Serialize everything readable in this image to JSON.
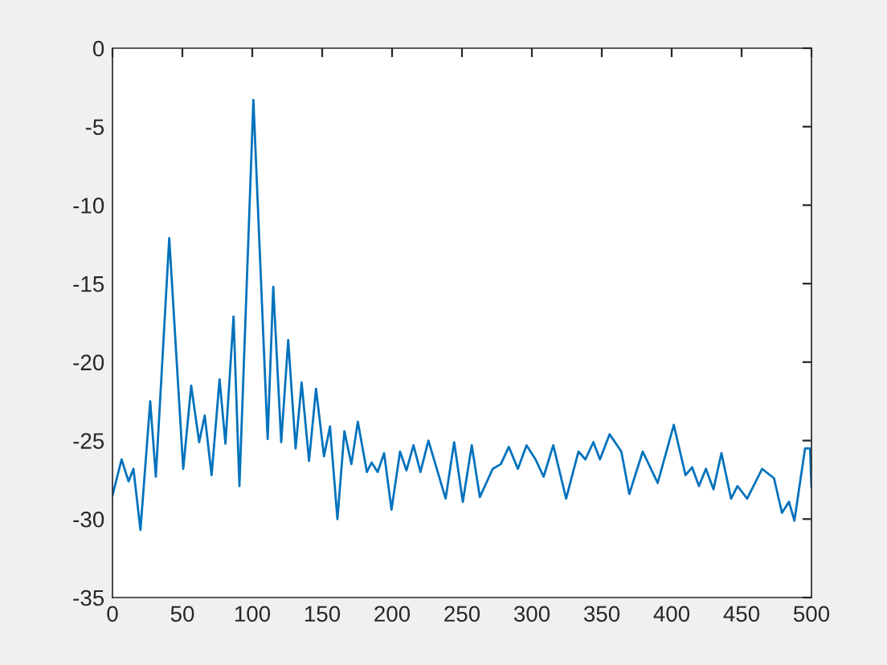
{
  "chart_data": {
    "type": "line",
    "xlim": [
      0,
      500
    ],
    "ylim": [
      -35,
      0
    ],
    "xticks": [
      0,
      50,
      100,
      150,
      200,
      250,
      300,
      350,
      400,
      450,
      500
    ],
    "yticks": [
      -35,
      -30,
      -25,
      -20,
      -15,
      -10,
      -5,
      0
    ],
    "grid": false,
    "marker": "none",
    "line_style": "solid",
    "series": [
      {
        "color": "#0072bd",
        "x": [
          0,
          6.5,
          11.5,
          15,
          20,
          27,
          31,
          40.6,
          50.6,
          56.3,
          62,
          66,
          70.9,
          76.6,
          80.8,
          86.6,
          90.8,
          100.8,
          111,
          115,
          120.7,
          125.7,
          131,
          135.3,
          140.6,
          145.6,
          151.3,
          155.6,
          160.9,
          165.9,
          170.9,
          175.5,
          182,
          185.4,
          189.7,
          194.3,
          199.6,
          205.7,
          210.3,
          215.3,
          220.3,
          226,
          238.3,
          244.4,
          250.6,
          257,
          262.8,
          272,
          277.8,
          283.5,
          290,
          296.2,
          302.6,
          308.4,
          315.3,
          324.5,
          333.3,
          338.3,
          344,
          348.7,
          355.6,
          364,
          369.7,
          379.3,
          390,
          401.5,
          409.9,
          414.6,
          419.5,
          424.5,
          429.9,
          435.6,
          442.5,
          447.1,
          454,
          464.7,
          473.2,
          478.9,
          483.9,
          487.8,
          495.4,
          499,
          500
        ],
        "values": [
          -28.5,
          -26.2,
          -27.6,
          -26.8,
          -30.7,
          -22.5,
          -27.3,
          -12.1,
          -26.8,
          -21.5,
          -25.1,
          -23.4,
          -27.2,
          -21.1,
          -25.2,
          -17.1,
          -27.9,
          -3.3,
          -24.9,
          -15.2,
          -25.1,
          -18.6,
          -25.5,
          -21.3,
          -26.3,
          -21.7,
          -26.0,
          -24.1,
          -30.0,
          -24.4,
          -26.5,
          -23.8,
          -27.0,
          -26.4,
          -27.0,
          -25.8,
          -29.4,
          -25.7,
          -26.9,
          -25.3,
          -27.0,
          -25.0,
          -28.7,
          -25.1,
          -28.9,
          -25.3,
          -28.6,
          -26.8,
          -26.5,
          -25.4,
          -26.8,
          -25.3,
          -26.2,
          -27.3,
          -25.3,
          -28.7,
          -25.7,
          -26.2,
          -25.1,
          -26.2,
          -24.6,
          -25.7,
          -28.4,
          -25.7,
          -27.7,
          -24.0,
          -27.2,
          -26.7,
          -27.9,
          -26.8,
          -28.1,
          -25.8,
          -28.7,
          -27.9,
          -28.7,
          -26.8,
          -27.4,
          -29.6,
          -28.9,
          -30.1,
          -25.5,
          -25.5,
          -28.0
        ]
      }
    ]
  }
}
